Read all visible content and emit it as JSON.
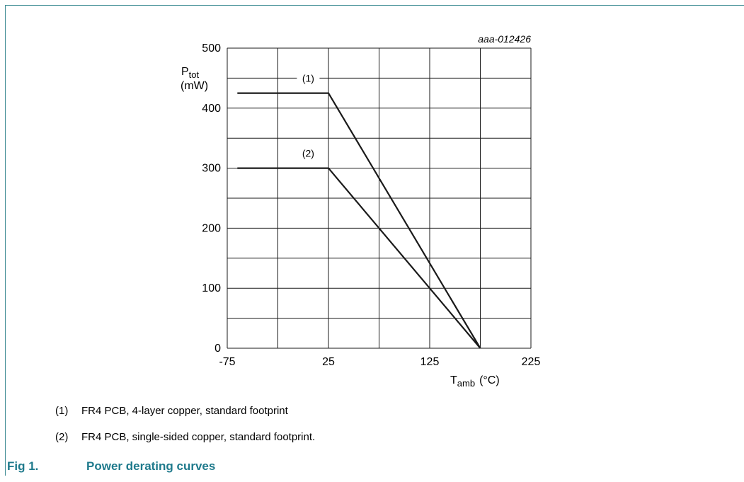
{
  "figure": {
    "id_label": "aaa-012426",
    "caption_number": "Fig 1.",
    "caption_title": "Power derating curves",
    "notes": [
      {
        "marker": "(1)",
        "text": "FR4 PCB, 4-layer copper, standard footprint"
      },
      {
        "marker": "(2)",
        "text": "FR4 PCB, single-sided copper, standard footprint."
      }
    ]
  },
  "chart_data": {
    "type": "line",
    "title": "",
    "ylabel_main": "P",
    "ylabel_sub": "tot",
    "ylabel_unit": "(mW)",
    "xlabel_main": "T",
    "xlabel_sub": "amb",
    "xlabel_unit": "(°C)",
    "xlim": [
      -75,
      225
    ],
    "ylim": [
      0,
      500
    ],
    "xticks": [
      -75,
      25,
      125,
      225
    ],
    "yticks": [
      0,
      100,
      200,
      300,
      400,
      500
    ],
    "x_grid": [
      -75,
      -25,
      25,
      75,
      125,
      175,
      225
    ],
    "y_grid": [
      0,
      50,
      100,
      150,
      200,
      250,
      300,
      350,
      400,
      450,
      500
    ],
    "grid": true,
    "series": [
      {
        "name": "(1)",
        "points": [
          [
            -65,
            425
          ],
          [
            25,
            425
          ],
          [
            175,
            0
          ]
        ],
        "label_x": 5,
        "label_y": 445
      },
      {
        "name": "(2)",
        "points": [
          [
            -65,
            300
          ],
          [
            25,
            300
          ],
          [
            175,
            0
          ]
        ],
        "label_x": 5,
        "label_y": 320
      }
    ],
    "colors": {
      "line": "#1a1a1a",
      "grid": "#1a1a1a"
    }
  }
}
